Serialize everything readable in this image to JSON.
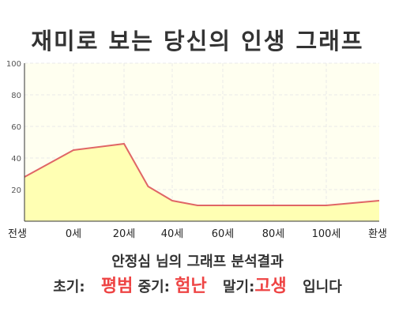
{
  "title": "재미로 보는 당신의 인생 그래프",
  "chart_data": {
    "type": "area",
    "x_categories": [
      "전생",
      "0세",
      "20세",
      "40세",
      "60세",
      "80세",
      "100세",
      "환생"
    ],
    "points": [
      {
        "x": "전생",
        "y": 28
      },
      {
        "x": "0세",
        "y": 45
      },
      {
        "x": "20세",
        "y": 49
      },
      {
        "x": "30세",
        "y": 22
      },
      {
        "x": "40세",
        "y": 13
      },
      {
        "x": "50세",
        "y": 10
      },
      {
        "x": "100세",
        "y": 10
      },
      {
        "x": "환생",
        "y": 13
      }
    ],
    "y_ticks": [
      20,
      40,
      60,
      80,
      100
    ],
    "ylim": [
      0,
      100
    ],
    "grid": true,
    "colors": {
      "line": "#e06666",
      "fill": "#ffffb3",
      "plot_bg": "#fffff0",
      "grid": "#e8e8e8",
      "axis": "#333333"
    }
  },
  "result": {
    "line1": "안정심 님의 그래프 분석결과",
    "early_label": "초기:",
    "early_value": "평범",
    "mid_label": "중기:",
    "mid_value": "험난",
    "late_label": "말기:",
    "late_value": "고생",
    "suffix": "입니다"
  }
}
